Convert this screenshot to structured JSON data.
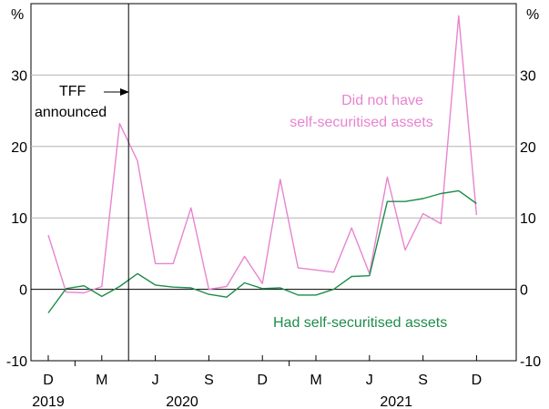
{
  "chart_data": {
    "type": "line",
    "title": "",
    "y_unit_left": "%",
    "y_unit_right": "%",
    "ylim": [
      -10,
      40
    ],
    "yticks": [
      -10,
      0,
      10,
      20,
      30
    ],
    "ytick_labels": [
      "-10",
      "0",
      "10",
      "20",
      "30"
    ],
    "x_month_index_range": [
      0,
      26
    ],
    "x_month_ticks": [
      {
        "index": 0,
        "label": "D"
      },
      {
        "index": 3,
        "label": "M"
      },
      {
        "index": 6,
        "label": "J"
      },
      {
        "index": 9,
        "label": "S"
      },
      {
        "index": 12,
        "label": "D"
      },
      {
        "index": 15,
        "label": "M"
      },
      {
        "index": 18,
        "label": "J"
      },
      {
        "index": 21,
        "label": "S"
      },
      {
        "index": 24,
        "label": "D"
      }
    ],
    "x_year_labels": [
      {
        "index": 0,
        "label": "2019"
      },
      {
        "index": 7.5,
        "label": "2020"
      },
      {
        "index": 19.5,
        "label": "2021"
      }
    ],
    "event_line": {
      "index": 4.5,
      "label_line1": "TFF",
      "label_line2": "announced"
    },
    "series": [
      {
        "name": "Did not have self-securitised assets",
        "label_line1": "Did not have",
        "label_line2": "self-securitised assets",
        "color": "#e884cf",
        "x": [
          0,
          1,
          2,
          3,
          4,
          5,
          6,
          7,
          8,
          9,
          10,
          11,
          12,
          13,
          14,
          15,
          16,
          17,
          18,
          19,
          20,
          21,
          22,
          23,
          24
        ],
        "values": [
          7.6,
          -0.4,
          -0.5,
          0.4,
          23.2,
          18.0,
          3.6,
          3.6,
          11.4,
          0.0,
          0.4,
          4.6,
          0.8,
          15.4,
          3.0,
          2.7,
          2.4,
          8.6,
          2.2,
          15.7,
          5.5,
          10.6,
          9.2,
          38.3,
          10.4
        ]
      },
      {
        "name": "Had self-securitised assets",
        "label_line1": "Had self-securitised assets",
        "color": "#1e8c4a",
        "x": [
          0,
          1,
          2,
          3,
          4,
          5,
          6,
          7,
          8,
          9,
          10,
          11,
          12,
          13,
          14,
          15,
          16,
          17,
          18,
          19,
          20,
          21,
          22,
          23,
          24
        ],
        "values": [
          -3.3,
          0.1,
          0.5,
          -1.0,
          0.4,
          2.2,
          0.6,
          0.3,
          0.2,
          -0.7,
          -1.1,
          0.9,
          0.1,
          0.2,
          -0.8,
          -0.8,
          0.0,
          1.8,
          1.9,
          12.3,
          12.3,
          12.7,
          13.4,
          13.8,
          12.0
        ]
      }
    ]
  }
}
